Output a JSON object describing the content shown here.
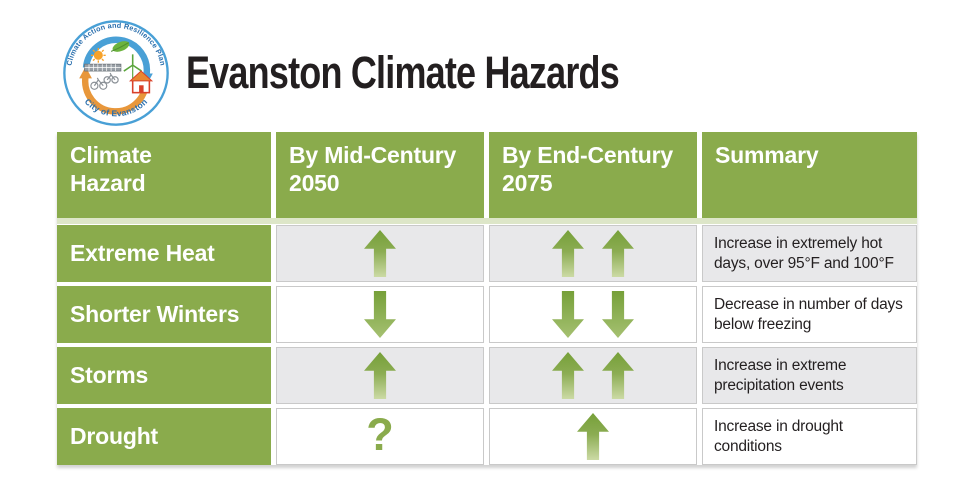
{
  "logo": {
    "top_arc_text": "Climate Action and Resilience Plan",
    "bottom_arc_text": "City of Evanston"
  },
  "title": "Evanston Climate Hazards",
  "colors": {
    "header_green": "#8aab4c",
    "band_green": "#dde6c8",
    "row_gray": "#e8e8ea",
    "cell_border": "#c9c9c9",
    "text_dark": "#231f20",
    "arrow_dark": "#76a039",
    "arrow_pale": "#ccdaa5",
    "logo_blue": "#49a0d6",
    "logo_text_blue": "#2a6fad",
    "logo_orange": "#e8973b"
  },
  "table": {
    "headers": [
      "Climate\nHazard",
      "By Mid-Century\n2050",
      "By End-Century\n2075",
      "Summary"
    ],
    "question_glyph": "?",
    "rows": [
      {
        "hazard": "Extreme Heat",
        "mid_century": [
          "up"
        ],
        "end_century": [
          "up",
          "up"
        ],
        "summary": "Increase in extremely hot days, over 95°F and 100°F"
      },
      {
        "hazard": "Shorter Winters",
        "mid_century": [
          "down"
        ],
        "end_century": [
          "down",
          "down"
        ],
        "summary": "Decrease in number of days below freezing"
      },
      {
        "hazard": "Storms",
        "mid_century": [
          "up"
        ],
        "end_century": [
          "up",
          "up"
        ],
        "summary": "Increase in extreme precipitation events"
      },
      {
        "hazard": "Drought",
        "mid_century": [
          "question"
        ],
        "end_century": [
          "up"
        ],
        "summary": "Increase in drought conditions"
      }
    ]
  }
}
